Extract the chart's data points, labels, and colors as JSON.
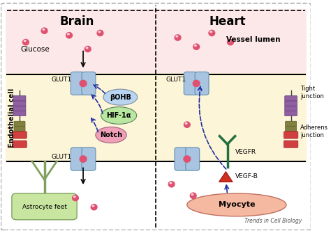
{
  "title_brain": "Brain",
  "title_heart": "Heart",
  "label_vessel_lumen": "Vessel lumen",
  "label_endothelial_cell": "Endothelial cell",
  "label_glucose": "Glucose",
  "label_glut1_top_brain": "GLUT1",
  "label_glut1_bot_brain": "GLUT1",
  "label_glut1_top_heart": "GLUT1",
  "label_bohb": "βOHB",
  "label_hif1a": "HIF-1α",
  "label_notch": "Notch",
  "label_vegfr": "VEGFR",
  "label_vegfb": "VEGF-B",
  "label_astrocyte_feet": "Astrocyte feet",
  "label_myocyte": "Myocyte",
  "label_tight_junction": "Tight\njunction",
  "label_adherens_junction": "Adherens\njunction",
  "label_trends": "Trends in Cell Biology",
  "bg_vessel_color": "#fce8e8",
  "bg_cell_color": "#fdf5d8",
  "astrocyte_color": "#c8e6a0",
  "myocyte_color": "#f5b8a0",
  "bohb_color": "#b8d4f0",
  "hif1a_color": "#b8e8a0",
  "notch_color": "#f0a0b8",
  "glucose_dot_color": "#e05070",
  "fig_width": 4.74,
  "fig_height": 3.32
}
